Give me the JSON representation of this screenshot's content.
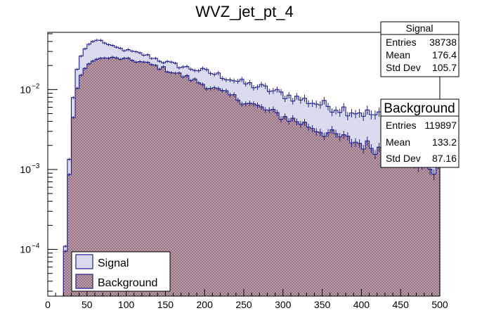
{
  "colors": {
    "signal_line": "#1e1e8c",
    "signal_fill": "#d9dcee",
    "background_line": "#1e1e8c",
    "background_fill": "#c8a5b2",
    "background_hatch": "#8c6e7c"
  },
  "chart_data": {
    "type": "histogram",
    "title": "WVZ_jet_pt_4",
    "xlim": [
      0,
      500
    ],
    "ylim": [
      2.6e-05,
      0.052
    ],
    "ylog": true,
    "xticks": [
      0,
      50,
      100,
      150,
      200,
      250,
      300,
      350,
      400,
      450,
      500
    ],
    "xtick_labels": [
      "0",
      "50",
      "100",
      "150",
      "200",
      "250",
      "300",
      "350",
      "400",
      "450",
      "500"
    ],
    "yticks": [
      0.0001,
      0.001,
      0.01
    ],
    "ytick_labels": [
      {
        "base": "10",
        "exp": "−4"
      },
      {
        "base": "10",
        "exp": "−3"
      },
      {
        "base": "10",
        "exp": "−2"
      }
    ],
    "bin_width": 5,
    "series": [
      {
        "name": "Signal",
        "stats": {
          "title": "Signal",
          "rows": [
            [
              "Entries",
              "38738"
            ],
            [
              "Mean",
              "176.4"
            ],
            [
              "Std Dev",
              "105.7"
            ]
          ]
        },
        "anchors": [
          [
            20,
            3e-05
          ],
          [
            25,
            0.0004
          ],
          [
            30,
            0.0045
          ],
          [
            35,
            0.014
          ],
          [
            40,
            0.023
          ],
          [
            45,
            0.03
          ],
          [
            50,
            0.035
          ],
          [
            55,
            0.039
          ],
          [
            60,
            0.041
          ],
          [
            65,
            0.042
          ],
          [
            70,
            0.04
          ],
          [
            80,
            0.035
          ],
          [
            90,
            0.033
          ],
          [
            100,
            0.031
          ],
          [
            125,
            0.027
          ],
          [
            150,
            0.022
          ],
          [
            175,
            0.019
          ],
          [
            200,
            0.017
          ],
          [
            225,
            0.0145
          ],
          [
            250,
            0.012
          ],
          [
            275,
            0.0105
          ],
          [
            300,
            0.0087
          ],
          [
            325,
            0.0075
          ],
          [
            350,
            0.0065
          ],
          [
            375,
            0.0058
          ],
          [
            400,
            0.0052
          ],
          [
            425,
            0.0046
          ],
          [
            450,
            0.0041
          ],
          [
            475,
            0.0037
          ],
          [
            500,
            0.0034
          ]
        ]
      },
      {
        "name": "Background",
        "stats": {
          "title": "Background",
          "rows": [
            [
              "Entries",
              "119897"
            ],
            [
              "Mean",
              "133.2"
            ],
            [
              "Std Dev",
              "87.16"
            ]
          ]
        },
        "anchors": [
          [
            20,
            3e-05
          ],
          [
            25,
            0.0003
          ],
          [
            30,
            0.0025
          ],
          [
            35,
            0.008
          ],
          [
            40,
            0.0135
          ],
          [
            45,
            0.017
          ],
          [
            50,
            0.02
          ],
          [
            55,
            0.022
          ],
          [
            60,
            0.0235
          ],
          [
            65,
            0.0245
          ],
          [
            70,
            0.0245
          ],
          [
            80,
            0.025
          ],
          [
            90,
            0.0245
          ],
          [
            100,
            0.024
          ],
          [
            125,
            0.0215
          ],
          [
            150,
            0.018
          ],
          [
            175,
            0.0145
          ],
          [
            200,
            0.0115
          ],
          [
            225,
            0.009
          ],
          [
            250,
            0.0072
          ],
          [
            275,
            0.0057
          ],
          [
            300,
            0.0046
          ],
          [
            325,
            0.0038
          ],
          [
            350,
            0.003
          ],
          [
            375,
            0.0025
          ],
          [
            400,
            0.0021
          ],
          [
            425,
            0.0018
          ],
          [
            450,
            0.0015
          ],
          [
            475,
            0.0012
          ],
          [
            500,
            0.001
          ]
        ]
      }
    ],
    "legend": {
      "position": "bottom-left",
      "entries": [
        "Signal",
        "Background"
      ]
    }
  }
}
